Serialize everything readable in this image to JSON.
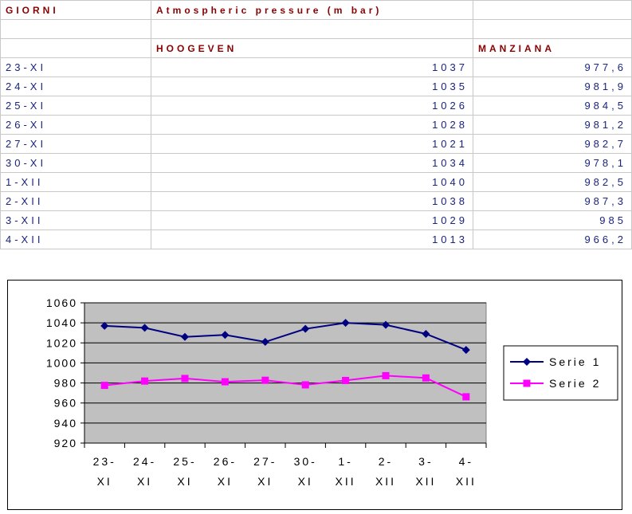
{
  "table": {
    "headers": {
      "col1": "GIORNI",
      "col2": "Atmospheric pressure (m bar)",
      "hoogeven": "HOOGEVEN",
      "manziana": "MANZIANA"
    },
    "rows": [
      {
        "day": "23-XI",
        "hoogeven": "1037",
        "manziana": "977,6"
      },
      {
        "day": "24-XI",
        "hoogeven": "1035",
        "manziana": "981,9"
      },
      {
        "day": "25-XI",
        "hoogeven": "1026",
        "manziana": "984,5"
      },
      {
        "day": "26-XI",
        "hoogeven": "1028",
        "manziana": "981,2"
      },
      {
        "day": "27-XI",
        "hoogeven": "1021",
        "manziana": "982,7"
      },
      {
        "day": "30-XI",
        "hoogeven": "1034",
        "manziana": "978,1"
      },
      {
        "day": "1-XII",
        "hoogeven": "1040",
        "manziana": "982,5"
      },
      {
        "day": "2-XII",
        "hoogeven": "1038",
        "manziana": "987,3"
      },
      {
        "day": "3-XII",
        "hoogeven": "1029",
        "manziana": "985"
      },
      {
        "day": "4-XII",
        "hoogeven": "1013",
        "manziana": "966,2"
      }
    ]
  },
  "chart_data": {
    "type": "line",
    "categories": [
      [
        "23-",
        "XI"
      ],
      [
        "24-",
        "XI"
      ],
      [
        "25-",
        "XI"
      ],
      [
        "26-",
        "XI"
      ],
      [
        "27-",
        "XI"
      ],
      [
        "30-",
        "XI"
      ],
      [
        "1-",
        "XII"
      ],
      [
        "2-",
        "XII"
      ],
      [
        "3-",
        "XII"
      ],
      [
        "4-",
        "XII"
      ]
    ],
    "ylim": [
      920,
      1060
    ],
    "yticks": [
      920,
      940,
      960,
      980,
      1000,
      1020,
      1040,
      1060
    ],
    "grid": true,
    "legend_position": "right",
    "plot_background": "#c0c0c0",
    "series": [
      {
        "name": "Serie 1",
        "color": "#000080",
        "marker": "diamond",
        "values": [
          1037,
          1035,
          1026,
          1028,
          1021,
          1034,
          1040,
          1038,
          1029,
          1013
        ]
      },
      {
        "name": "Serie 2",
        "color": "#ff00ff",
        "marker": "square",
        "values": [
          977.6,
          981.9,
          984.5,
          981.2,
          982.7,
          978.1,
          982.5,
          987.3,
          985,
          966.2
        ]
      }
    ]
  }
}
